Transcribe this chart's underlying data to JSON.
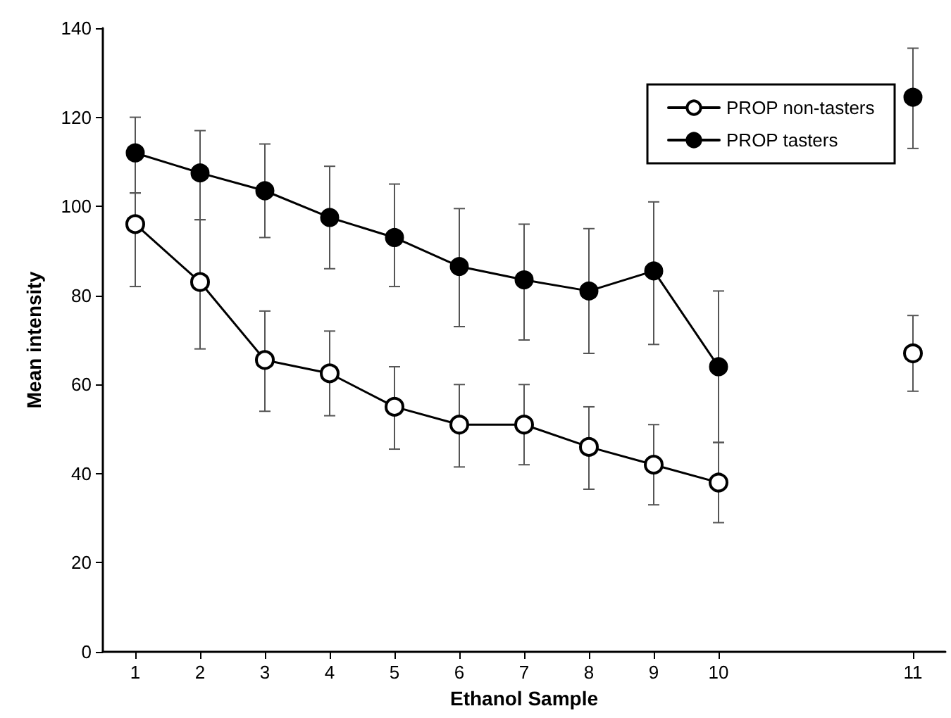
{
  "chart_data": {
    "type": "line",
    "xlabel": "Ethanol Sample",
    "ylabel": "Mean intensity",
    "categories": [
      "1",
      "2",
      "3",
      "4",
      "5",
      "6",
      "7",
      "8",
      "9",
      "10",
      null,
      null,
      "11"
    ],
    "ylim": [
      0,
      140
    ],
    "yticks": [
      0,
      20,
      40,
      60,
      80,
      100,
      120,
      140
    ],
    "grid": false,
    "legend": "top right",
    "line_style": "solid",
    "series": [
      {
        "name": "PROP non-tasters",
        "color": "#000000",
        "marker": "open circle",
        "values": [
          96,
          83,
          65.5,
          62.5,
          55,
          51,
          51,
          46,
          42,
          38,
          null,
          null,
          67
        ],
        "errors": [
          [
            82,
            103
          ],
          [
            68,
            97
          ],
          [
            54,
            76.5
          ],
          [
            53,
            72
          ],
          [
            45.5,
            64
          ],
          [
            41.5,
            60
          ],
          [
            42,
            60
          ],
          [
            36.5,
            55
          ],
          [
            33,
            51
          ],
          [
            29,
            47
          ],
          null,
          null,
          [
            58.5,
            75.5
          ]
        ]
      },
      {
        "name": "PROP tasters",
        "color": "#000000",
        "marker": "circle",
        "values": [
          112,
          107.5,
          103.5,
          97.5,
          93,
          86.5,
          83.5,
          81,
          85.5,
          64,
          null,
          null,
          124.5
        ],
        "errors": [
          [
            103,
            120
          ],
          [
            97,
            117
          ],
          [
            93,
            114
          ],
          [
            86,
            109
          ],
          [
            82,
            105
          ],
          [
            73,
            99.5
          ],
          [
            70,
            96
          ],
          [
            67,
            95
          ],
          [
            69,
            101
          ],
          [
            47,
            81
          ],
          null,
          null,
          [
            113,
            135.5
          ]
        ]
      }
    ]
  }
}
